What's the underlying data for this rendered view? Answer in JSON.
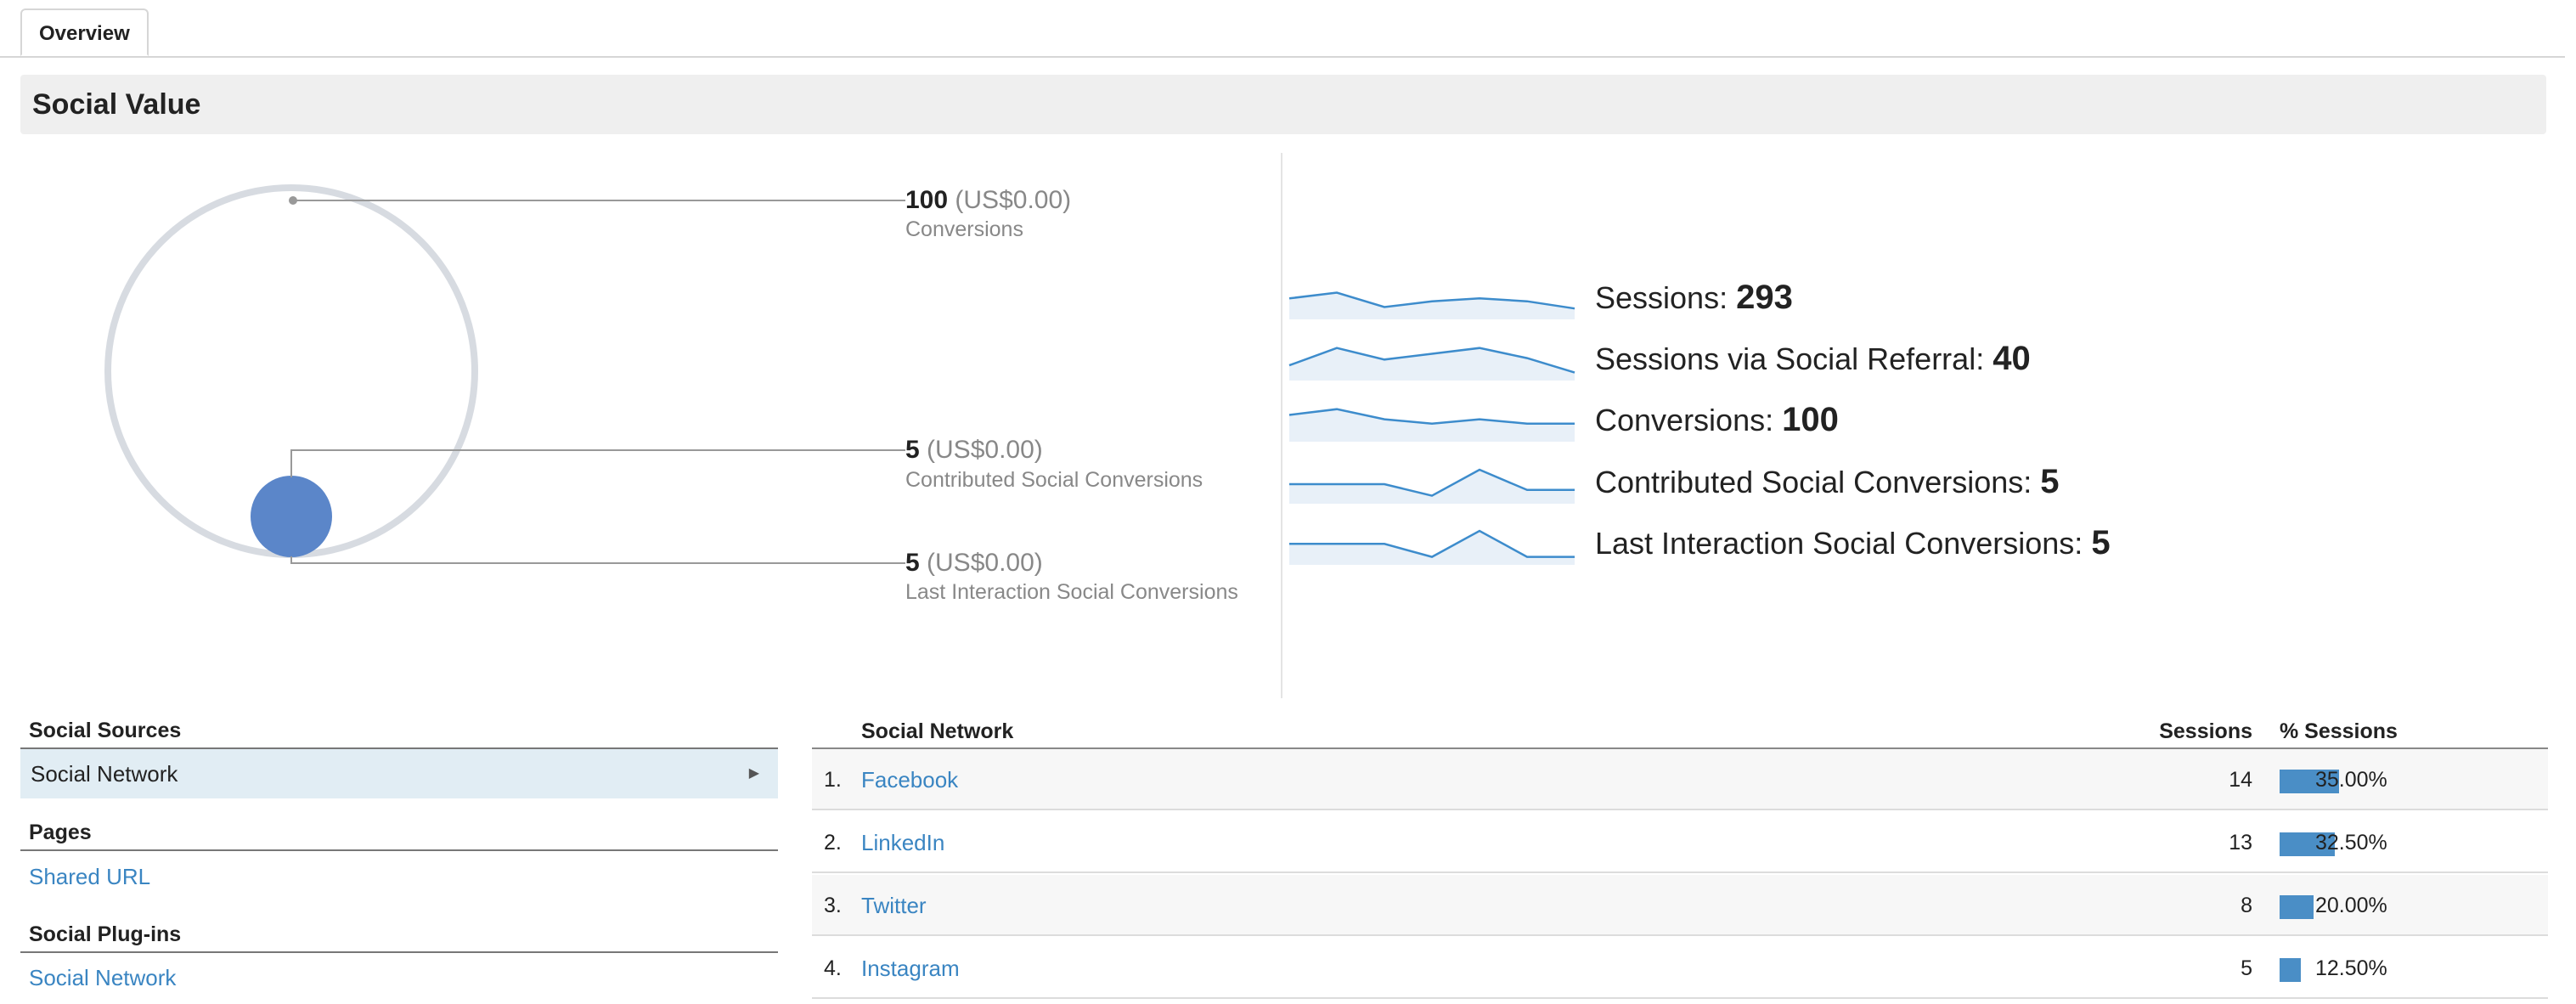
{
  "tabs": [
    {
      "label": "Overview"
    }
  ],
  "section": {
    "title": "Social Value"
  },
  "conversion_viz": {
    "total": {
      "value": "100",
      "currency": "(US$0.00)",
      "label": "Conversions"
    },
    "contributed": {
      "value": "5",
      "currency": "(US$0.00)",
      "label": "Contributed Social Conversions"
    },
    "last_interaction": {
      "value": "5",
      "currency": "(US$0.00)",
      "label": "Last Interaction Social Conversions"
    },
    "colors": {
      "outer_ring": "#d7dbe1",
      "inner_circle": "#5b86c9",
      "connector": "#999999"
    }
  },
  "metrics": [
    {
      "label": "Sessions:",
      "value": "293",
      "trend": [
        0.55,
        0.75,
        0.25,
        0.45,
        0.55,
        0.45,
        0.2
      ]
    },
    {
      "label": "Sessions via Social Referral:",
      "value": "40",
      "trend": [
        0.35,
        0.95,
        0.55,
        0.75,
        0.95,
        0.6,
        0.1
      ]
    },
    {
      "label": "Conversions:",
      "value": "100",
      "trend": [
        0.75,
        0.95,
        0.6,
        0.45,
        0.6,
        0.45,
        0.45
      ]
    },
    {
      "label": "Contributed Social Conversions:",
      "value": "5",
      "trend": [
        0.5,
        0.5,
        0.5,
        0.1,
        1.0,
        0.3,
        0.3
      ]
    },
    {
      "label": "Last Interaction Social Conversions:",
      "value": "5",
      "trend": [
        0.55,
        0.55,
        0.55,
        0.1,
        1.0,
        0.1,
        0.1
      ]
    }
  ],
  "social_sources": {
    "heading": "Social Sources",
    "selected_item": "Social Network",
    "pages_heading": "Pages",
    "pages_link": "Shared URL",
    "plugins_heading": "Social Plug-ins",
    "plugins_link": "Social Network"
  },
  "network_table": {
    "columns": {
      "network": "Social Network",
      "sessions": "Sessions",
      "pct": "% Sessions"
    },
    "rows": [
      {
        "index": "1.",
        "name": "Facebook",
        "sessions": "14",
        "pct": "35.00%",
        "share": 0.35
      },
      {
        "index": "2.",
        "name": "LinkedIn",
        "sessions": "13",
        "pct": "32.50%",
        "share": 0.325
      },
      {
        "index": "3.",
        "name": "Twitter",
        "sessions": "8",
        "pct": "20.00%",
        "share": 0.2
      },
      {
        "index": "4.",
        "name": "Instagram",
        "sessions": "5",
        "pct": "12.50%",
        "share": 0.125
      }
    ]
  },
  "colors": {
    "link": "#3a85c2",
    "bar": "#4a8ec6",
    "spark_line": "#3d8ccc",
    "spark_fill": "#e8f0f8"
  }
}
